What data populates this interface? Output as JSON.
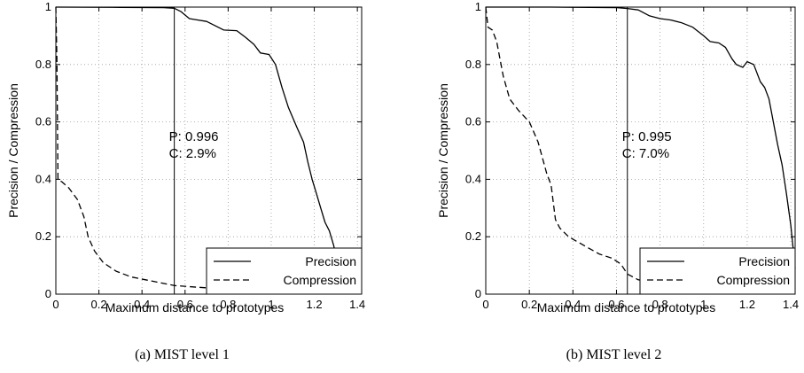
{
  "chart_data": [
    {
      "type": "line",
      "caption": "(a)  MIST level 1",
      "xlabel": "Maximum distance to prototypes",
      "ylabel": "Precision / Compression",
      "xlim": [
        0,
        1.42
      ],
      "ylim": [
        0,
        1
      ],
      "xticks": [
        "0",
        "0.2",
        "0.4",
        "0.6",
        "0.8",
        "1",
        "1.2",
        "1.4"
      ],
      "yticks": [
        "0",
        "0.2",
        "0.4",
        "0.6",
        "0.8",
        "1"
      ],
      "grid": true,
      "legend_position": "bottom-right",
      "marker": {
        "x": 0.55,
        "label_p": "P: 0.996",
        "label_c": "C: 2.9%"
      },
      "series": [
        {
          "name": "Precision",
          "style": "solid",
          "points": [
            [
              0,
              1
            ],
            [
              0.3,
              0.999
            ],
            [
              0.5,
              0.998
            ],
            [
              0.55,
              0.996
            ],
            [
              0.58,
              0.985
            ],
            [
              0.62,
              0.96
            ],
            [
              0.66,
              0.955
            ],
            [
              0.7,
              0.95
            ],
            [
              0.74,
              0.935
            ],
            [
              0.78,
              0.92
            ],
            [
              0.84,
              0.918
            ],
            [
              0.88,
              0.895
            ],
            [
              0.92,
              0.87
            ],
            [
              0.95,
              0.84
            ],
            [
              0.99,
              0.835
            ],
            [
              1.02,
              0.8
            ],
            [
              1.05,
              0.72
            ],
            [
              1.08,
              0.65
            ],
            [
              1.12,
              0.58
            ],
            [
              1.15,
              0.53
            ],
            [
              1.17,
              0.46
            ],
            [
              1.19,
              0.4
            ],
            [
              1.21,
              0.35
            ],
            [
              1.23,
              0.3
            ],
            [
              1.25,
              0.25
            ],
            [
              1.27,
              0.22
            ],
            [
              1.29,
              0.17
            ],
            [
              1.31,
              0.1
            ],
            [
              1.42,
              0.1
            ]
          ]
        },
        {
          "name": "Compression",
          "style": "dashed",
          "points": [
            [
              0,
              1
            ],
            [
              0.005,
              0.82
            ],
            [
              0.01,
              0.4
            ],
            [
              0.03,
              0.39
            ],
            [
              0.06,
              0.37
            ],
            [
              0.1,
              0.33
            ],
            [
              0.13,
              0.27
            ],
            [
              0.15,
              0.2
            ],
            [
              0.18,
              0.15
            ],
            [
              0.22,
              0.11
            ],
            [
              0.28,
              0.08
            ],
            [
              0.35,
              0.06
            ],
            [
              0.45,
              0.045
            ],
            [
              0.55,
              0.03
            ],
            [
              0.7,
              0.022
            ],
            [
              0.9,
              0.014
            ],
            [
              1.1,
              0.007
            ],
            [
              1.3,
              0.004
            ],
            [
              1.42,
              0.002
            ]
          ]
        }
      ]
    },
    {
      "type": "line",
      "caption": "(b)  MIST level 2",
      "xlabel": "Maximum distance to prototypes",
      "ylabel": "Precision / Compression",
      "xlim": [
        0,
        1.42
      ],
      "ylim": [
        0,
        1
      ],
      "xticks": [
        "0",
        "0.2",
        "0.4",
        "0.6",
        "0.8",
        "1",
        "1.2",
        "1.4"
      ],
      "yticks": [
        "0",
        "0.2",
        "0.4",
        "0.6",
        "0.8",
        "1"
      ],
      "grid": true,
      "legend_position": "bottom-right",
      "marker": {
        "x": 0.65,
        "label_p": "P: 0.995",
        "label_c": "C: 7.0%"
      },
      "series": [
        {
          "name": "Precision",
          "style": "solid",
          "points": [
            [
              0,
              1
            ],
            [
              0.3,
              1
            ],
            [
              0.6,
              0.998
            ],
            [
              0.65,
              0.995
            ],
            [
              0.7,
              0.99
            ],
            [
              0.75,
              0.97
            ],
            [
              0.8,
              0.96
            ],
            [
              0.85,
              0.955
            ],
            [
              0.9,
              0.945
            ],
            [
              0.95,
              0.93
            ],
            [
              1.0,
              0.9
            ],
            [
              1.03,
              0.88
            ],
            [
              1.07,
              0.875
            ],
            [
              1.1,
              0.86
            ],
            [
              1.13,
              0.82
            ],
            [
              1.15,
              0.8
            ],
            [
              1.18,
              0.79
            ],
            [
              1.2,
              0.81
            ],
            [
              1.23,
              0.8
            ],
            [
              1.26,
              0.74
            ],
            [
              1.28,
              0.72
            ],
            [
              1.3,
              0.68
            ],
            [
              1.32,
              0.6
            ],
            [
              1.34,
              0.52
            ],
            [
              1.36,
              0.45
            ],
            [
              1.38,
              0.35
            ],
            [
              1.4,
              0.24
            ],
            [
              1.42,
              0.09
            ]
          ]
        },
        {
          "name": "Compression",
          "style": "dashed",
          "points": [
            [
              0,
              1
            ],
            [
              0.01,
              0.93
            ],
            [
              0.03,
              0.92
            ],
            [
              0.05,
              0.88
            ],
            [
              0.08,
              0.76
            ],
            [
              0.11,
              0.68
            ],
            [
              0.15,
              0.64
            ],
            [
              0.2,
              0.6
            ],
            [
              0.24,
              0.53
            ],
            [
              0.28,
              0.42
            ],
            [
              0.3,
              0.38
            ],
            [
              0.32,
              0.26
            ],
            [
              0.34,
              0.23
            ],
            [
              0.38,
              0.2
            ],
            [
              0.45,
              0.17
            ],
            [
              0.52,
              0.14
            ],
            [
              0.58,
              0.125
            ],
            [
              0.62,
              0.105
            ],
            [
              0.65,
              0.07
            ],
            [
              0.7,
              0.05
            ],
            [
              0.8,
              0.035
            ],
            [
              0.9,
              0.025
            ],
            [
              1.0,
              0.018
            ],
            [
              1.1,
              0.012
            ],
            [
              1.2,
              0.008
            ],
            [
              1.3,
              0.005
            ],
            [
              1.42,
              0.003
            ]
          ]
        }
      ]
    }
  ]
}
